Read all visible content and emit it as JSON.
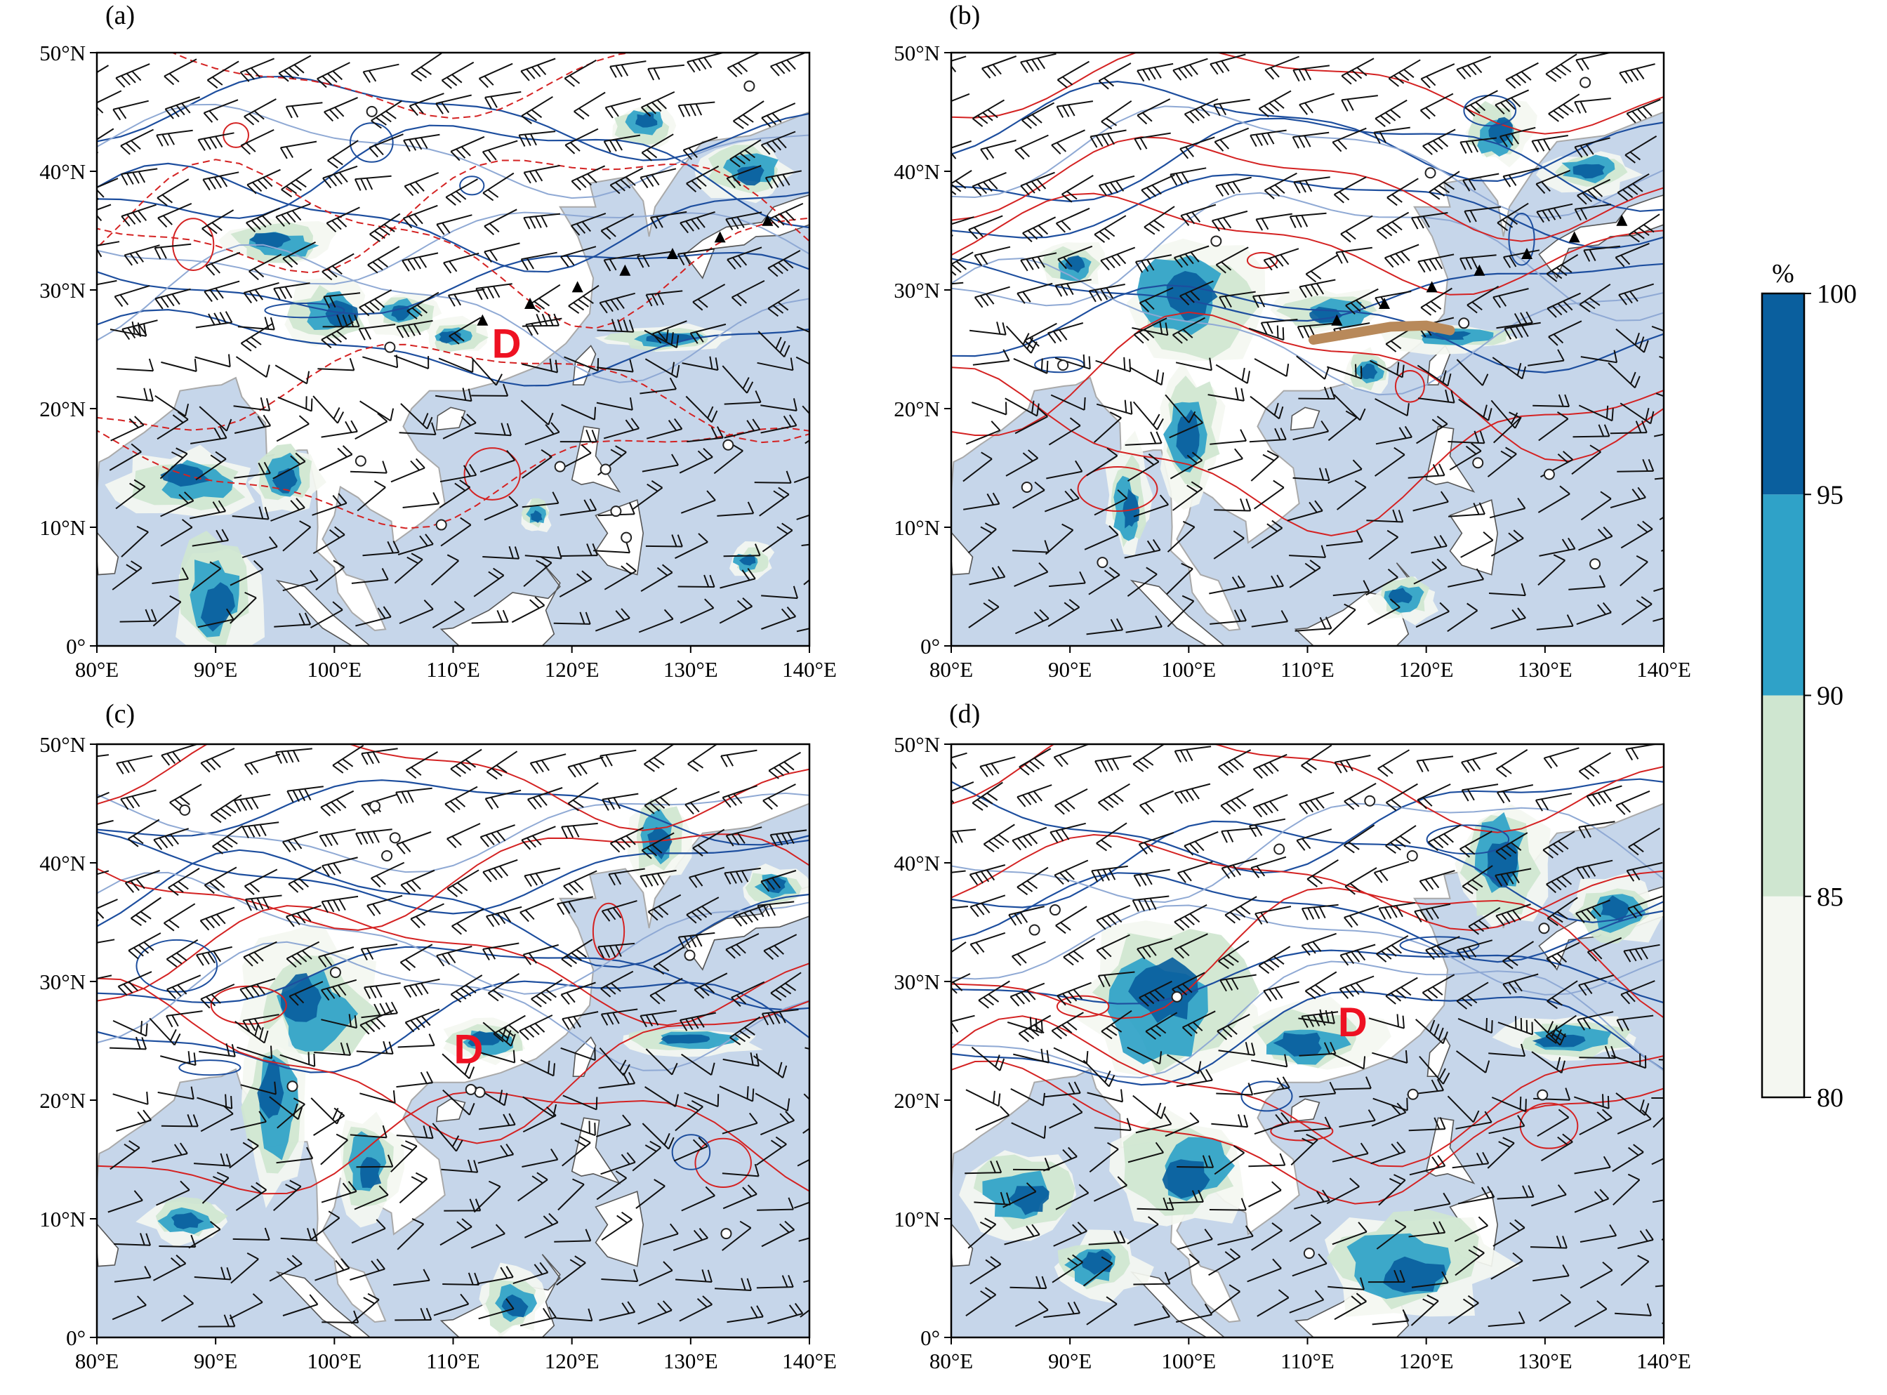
{
  "figure": {
    "panels": [
      {
        "id": "a",
        "label": "(a)",
        "markers": [
          {
            "text": "D",
            "lon": 114.5,
            "lat": 25.2
          }
        ],
        "shear_line": null
      },
      {
        "id": "b",
        "label": "(b)",
        "markers": [],
        "shear_line": [
          [
            110.5,
            25.8
          ],
          [
            113.5,
            26.3
          ],
          [
            117.0,
            26.9
          ],
          [
            120.0,
            27.0
          ],
          [
            122.0,
            26.6
          ]
        ]
      },
      {
        "id": "c",
        "label": "(c)",
        "markers": [
          {
            "text": "D",
            "lon": 111.3,
            "lat": 24.0
          }
        ],
        "shear_line": null
      },
      {
        "id": "d",
        "label": "(d)",
        "markers": [
          {
            "text": "D",
            "lon": 113.8,
            "lat": 26.3
          }
        ],
        "shear_line": null
      }
    ],
    "axes": {
      "x_ticks": [
        {
          "value": 80,
          "label": "80°E"
        },
        {
          "value": 90,
          "label": "90°E"
        },
        {
          "value": 100,
          "label": "100°E"
        },
        {
          "value": 110,
          "label": "110°E"
        },
        {
          "value": 120,
          "label": "120°E"
        },
        {
          "value": 130,
          "label": "130°E"
        },
        {
          "value": 140,
          "label": "140°E"
        }
      ],
      "y_ticks": [
        {
          "value": 0,
          "label": "0°"
        },
        {
          "value": 10,
          "label": "10°N"
        },
        {
          "value": 20,
          "label": "20°N"
        },
        {
          "value": 30,
          "label": "30°N"
        },
        {
          "value": 40,
          "label": "40°N"
        },
        {
          "value": 50,
          "label": "50°N"
        }
      ],
      "lon_range": [
        80,
        140
      ],
      "lat_range": [
        0,
        50
      ]
    },
    "colorbar": {
      "unit": "%",
      "levels": [
        {
          "from": 80,
          "to": 85,
          "color": "#f4f7f1"
        },
        {
          "from": 85,
          "to": 90,
          "color": "#cfe6d0"
        },
        {
          "from": 90,
          "to": 95,
          "color": "#2fa2c8"
        },
        {
          "from": 95,
          "to": 100,
          "color": "#0a5f9e"
        }
      ],
      "tick_labels": [
        "80",
        "85",
        "90",
        "95",
        "100"
      ]
    },
    "colors": {
      "ocean_fill": "#c6d6ea",
      "land_fill": "#ffffff",
      "coast_line": "#a9a9a9",
      "blue_contour": "#1d4e9e",
      "light_blue_contour": "#8fa9d4",
      "red_contour": "#d42222",
      "marker_text": "#ee1122",
      "shear_line": "#b8895a",
      "barb": "#111111"
    }
  }
}
